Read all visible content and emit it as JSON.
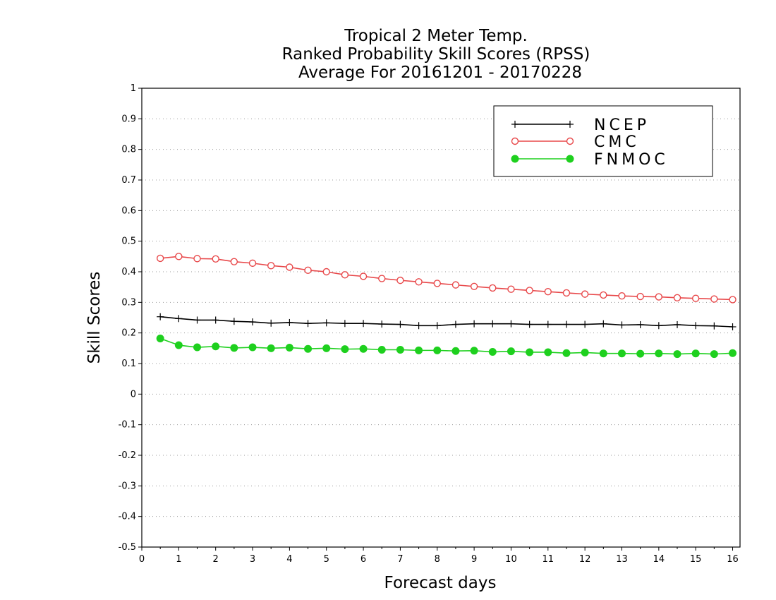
{
  "chart_data": {
    "type": "line",
    "title_lines": [
      "Tropical 2 Meter Temp.",
      "Ranked Probability Skill Scores (RPSS)",
      "Average For 20161201 - 20170228"
    ],
    "xlabel": "Forecast days",
    "ylabel": "Skill Scores",
    "xlim": [
      0,
      16.2
    ],
    "ylim": [
      -0.5,
      1
    ],
    "x_ticks": [
      "0",
      "1",
      "2",
      "3",
      "4",
      "5",
      "6",
      "7",
      "8",
      "9",
      "10",
      "11",
      "12",
      "13",
      "14",
      "15",
      "16"
    ],
    "y_ticks": [
      "1",
      "0.9",
      "0.8",
      "0.7",
      "0.6",
      "0.5",
      "0.4",
      "0.3",
      "0.2",
      "0.1",
      "0",
      "-0.1",
      "-0.2",
      "-0.3",
      "-0.4",
      "-0.5"
    ],
    "grid": "horizontal-dotted",
    "legend_position": "top-right",
    "x": [
      0.5,
      1,
      1.5,
      2,
      2.5,
      3,
      3.5,
      4,
      4.5,
      5,
      5.5,
      6,
      6.5,
      7,
      7.5,
      8,
      8.5,
      9,
      9.5,
      10,
      10.5,
      11,
      11.5,
      12,
      12.5,
      13,
      13.5,
      14,
      14.5,
      15,
      15.5,
      16
    ],
    "series": [
      {
        "name": "NCEP",
        "color": "#000000",
        "marker": "plus",
        "values": [
          0.253,
          0.247,
          0.242,
          0.242,
          0.238,
          0.236,
          0.232,
          0.234,
          0.231,
          0.233,
          0.231,
          0.231,
          0.229,
          0.228,
          0.224,
          0.224,
          0.228,
          0.23,
          0.23,
          0.23,
          0.228,
          0.228,
          0.228,
          0.228,
          0.23,
          0.226,
          0.227,
          0.224,
          0.227,
          0.224,
          0.223,
          0.22
        ]
      },
      {
        "name": "CMC",
        "color": "#e8484a",
        "marker": "open-circle",
        "values": [
          0.444,
          0.45,
          0.443,
          0.442,
          0.433,
          0.428,
          0.42,
          0.415,
          0.405,
          0.4,
          0.39,
          0.385,
          0.378,
          0.372,
          0.367,
          0.362,
          0.357,
          0.352,
          0.347,
          0.343,
          0.339,
          0.335,
          0.331,
          0.327,
          0.324,
          0.321,
          0.319,
          0.318,
          0.315,
          0.313,
          0.311,
          0.309
        ]
      },
      {
        "name": "FNMOC",
        "color": "#1ed01e",
        "marker": "filled-circle",
        "values": [
          0.182,
          0.16,
          0.153,
          0.156,
          0.151,
          0.153,
          0.15,
          0.152,
          0.148,
          0.15,
          0.147,
          0.148,
          0.145,
          0.145,
          0.143,
          0.143,
          0.141,
          0.142,
          0.138,
          0.14,
          0.137,
          0.137,
          0.134,
          0.136,
          0.133,
          0.133,
          0.132,
          0.133,
          0.131,
          0.133,
          0.131,
          0.134
        ]
      }
    ]
  }
}
